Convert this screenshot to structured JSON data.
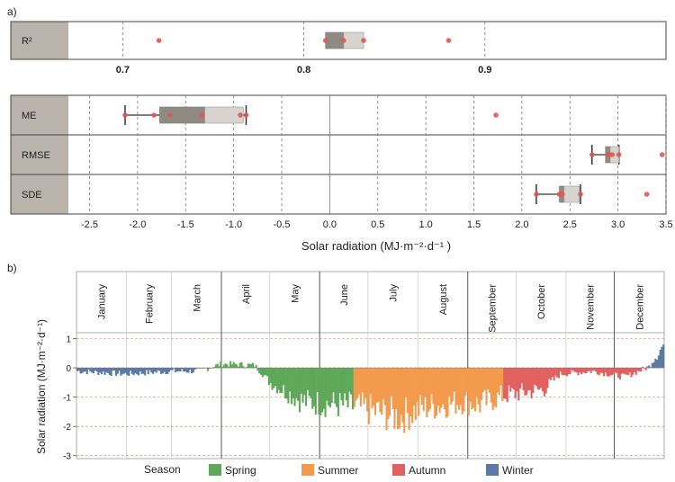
{
  "panel_labels": {
    "a": "a)",
    "b": "b)"
  },
  "chart_data": [
    {
      "type": "box",
      "panel": "a-top",
      "rows": [
        {
          "label": "R²",
          "points": [
            0.72,
            0.812,
            0.822,
            0.833,
            0.88
          ],
          "box": {
            "q1": 0.812,
            "median": 0.822,
            "q3": 0.833
          }
        }
      ],
      "x_ticks": [
        "0.7",
        "0.8",
        "0.9"
      ],
      "xlim": [
        0.67,
        1.0
      ]
    },
    {
      "type": "box",
      "panel": "a-bottom",
      "rows": [
        {
          "label": "ME",
          "points": [
            -2.13,
            -1.83,
            -1.66,
            -1.33,
            -0.93,
            -0.87,
            1.73
          ],
          "whisker": [
            -2.13,
            -0.87
          ],
          "box": {
            "q1": -1.77,
            "median": -1.3,
            "q3": -0.9
          }
        },
        {
          "label": "RMSE",
          "points": [
            2.73,
            2.9,
            2.94,
            3.01,
            3.46
          ],
          "whisker": [
            2.73,
            3.01
          ],
          "box": {
            "q1": 2.87,
            "median": 2.92,
            "q3": 3.01
          }
        },
        {
          "label": "SDE",
          "points": [
            2.15,
            2.39,
            2.42,
            2.61,
            3.3
          ],
          "whisker": [
            2.15,
            2.61
          ],
          "box": {
            "q1": 2.39,
            "median": 2.44,
            "q3": 2.6
          }
        }
      ],
      "x_ticks": [
        "-2.5",
        "-2.0",
        "-1.5",
        "-1.0",
        "-0.5",
        "0.0",
        "0.5",
        "1.0",
        "1.5",
        "2.0",
        "2.5",
        "3.0",
        "3.5"
      ],
      "xlim": [
        -2.72,
        3.5
      ],
      "xlabel": "Solar radiation (MJ·m⁻²·d⁻¹ )"
    },
    {
      "type": "bar",
      "panel": "b",
      "ylabel": "Solar radiation (MJ·m⁻²·d⁻¹)",
      "ylim": [
        -3.1,
        1.2
      ],
      "y_ticks": [
        "1",
        "0",
        "-1",
        "-2",
        "-3"
      ],
      "months": [
        "January",
        "February",
        "March",
        "April",
        "May",
        "June",
        "July",
        "August",
        "September",
        "October",
        "November",
        "December"
      ],
      "legend": {
        "title": "Season",
        "items": [
          "Spring",
          "Summer",
          "Autumn",
          "Winter"
        ]
      },
      "season_colors": {
        "Spring": "#5fa85a",
        "Summer": "#f39a4c",
        "Autumn": "#e26060",
        "Winter": "#5a7aa4"
      },
      "anchors": [
        {
          "day": 0,
          "v": -0.1
        },
        {
          "day": 30,
          "v": -0.2
        },
        {
          "day": 59,
          "v": -0.1
        },
        {
          "day": 75,
          "v": -0.1
        },
        {
          "day": 90,
          "v": 0.15
        },
        {
          "day": 110,
          "v": 0.1
        },
        {
          "day": 120,
          "v": -0.5
        },
        {
          "day": 140,
          "v": -1.1
        },
        {
          "day": 160,
          "v": -1.2
        },
        {
          "day": 175,
          "v": -1.3
        },
        {
          "day": 200,
          "v": -1.6
        },
        {
          "day": 215,
          "v": -1.3
        },
        {
          "day": 240,
          "v": -1.1
        },
        {
          "day": 250,
          "v": -1.2
        },
        {
          "day": 265,
          "v": -0.9
        },
        {
          "day": 290,
          "v": -0.7
        },
        {
          "day": 300,
          "v": -0.2
        },
        {
          "day": 320,
          "v": -0.1
        },
        {
          "day": 340,
          "v": -0.3
        },
        {
          "day": 355,
          "v": 0.05
        },
        {
          "day": 365,
          "v": 0.9
        }
      ]
    }
  ]
}
